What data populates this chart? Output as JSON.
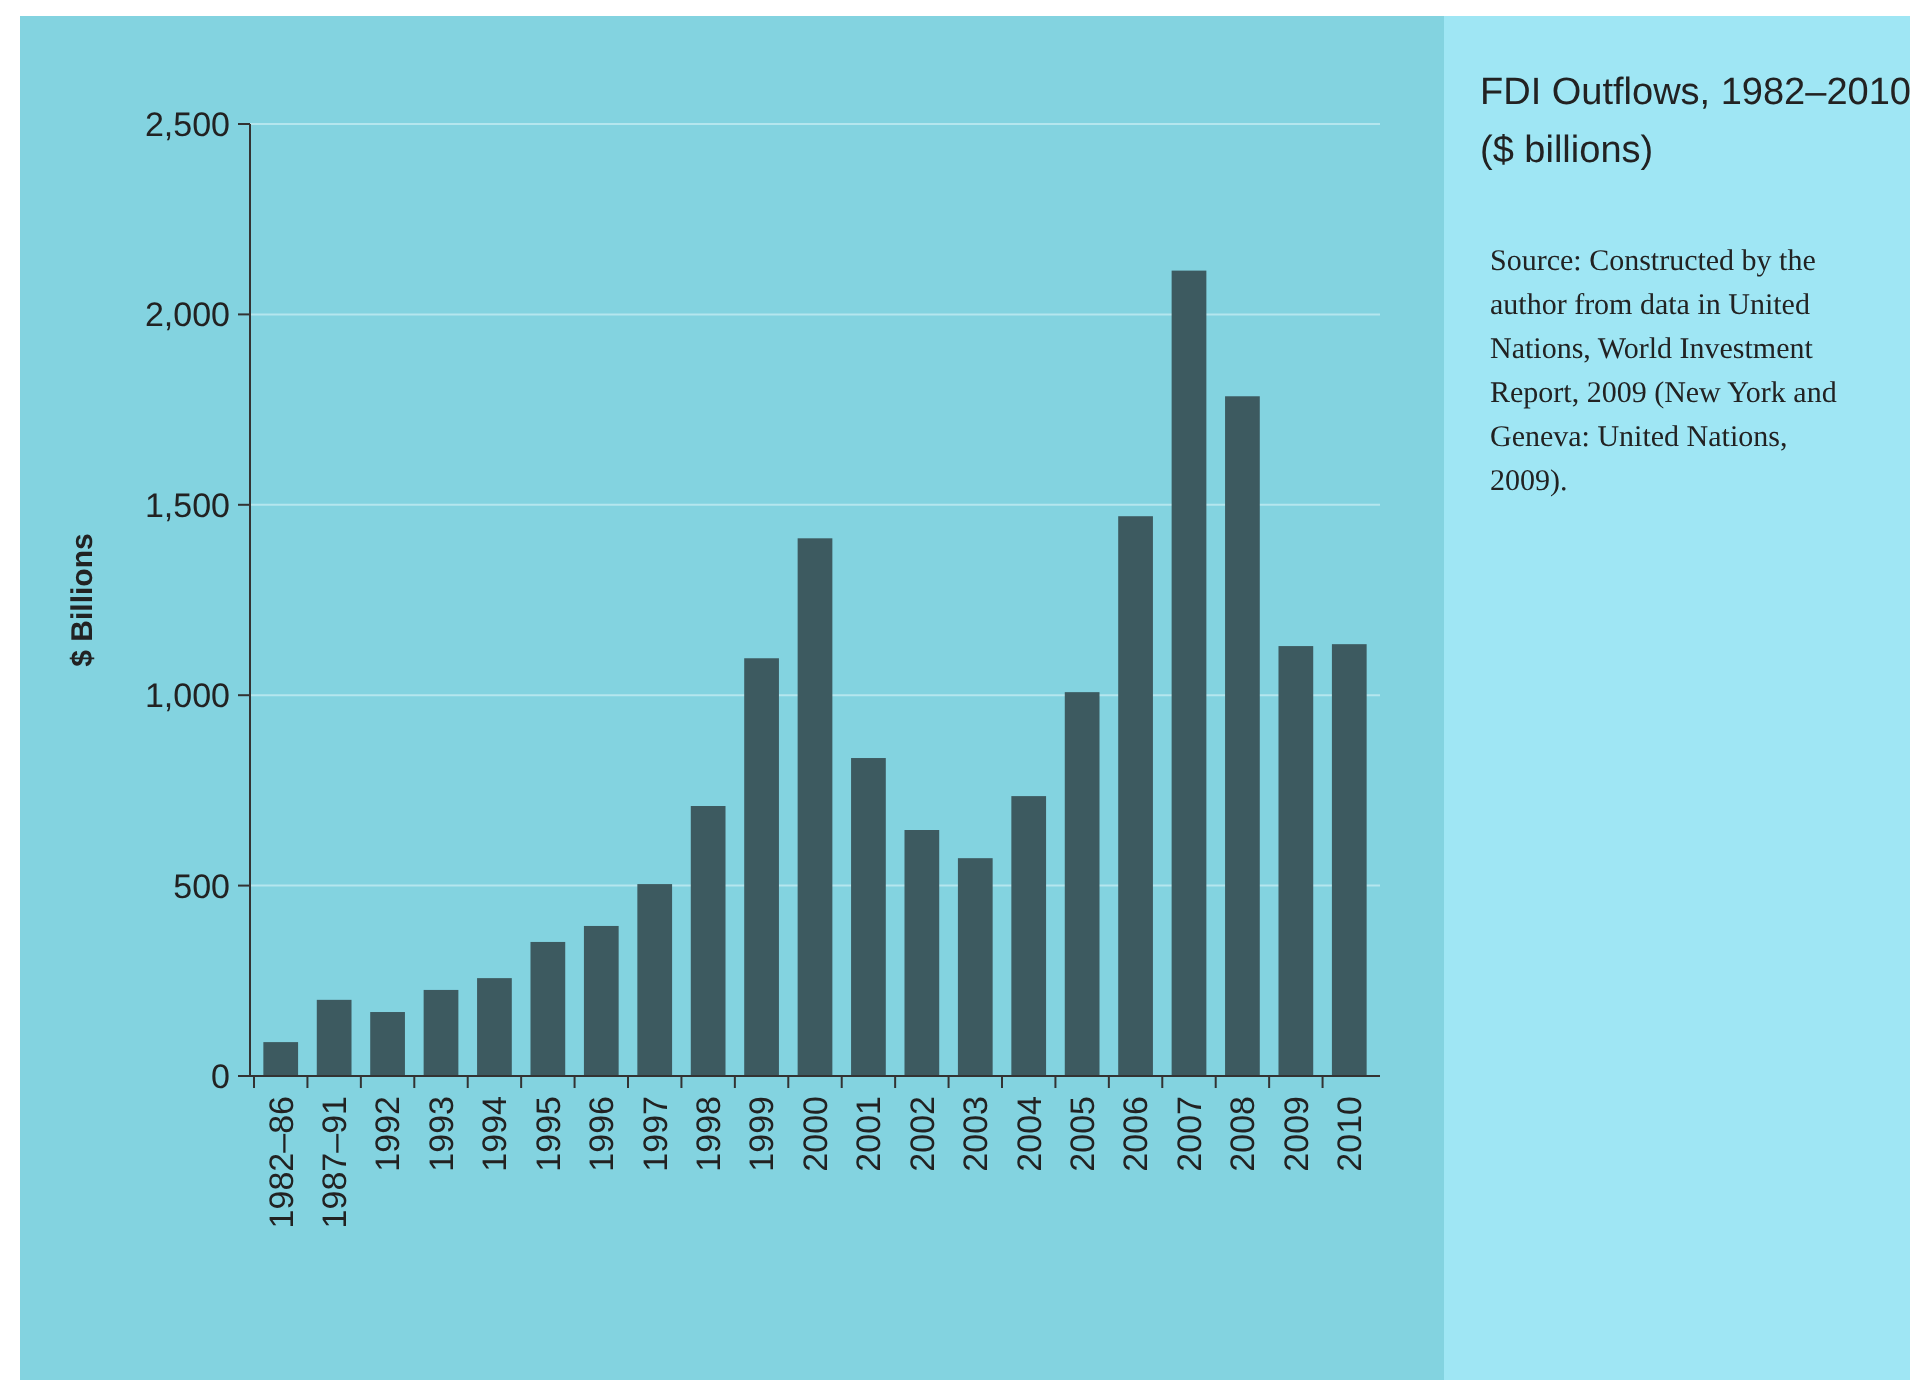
{
  "chart_data": {
    "type": "bar",
    "title": "FDI Outflows, 1982–2010 ($ billions)",
    "ylabel": "$ Billions",
    "categories": [
      "1982–86",
      "1987–91",
      "1992",
      "1993",
      "1994",
      "1995",
      "1996",
      "1997",
      "1998",
      "1999",
      "2000",
      "2001",
      "2002",
      "2003",
      "2004",
      "2005",
      "2006",
      "2007",
      "2008",
      "2009",
      "2010"
    ],
    "values": [
      89,
      200,
      168,
      226,
      257,
      352,
      394,
      504,
      709,
      1097,
      1412,
      835,
      646,
      572,
      735,
      1008,
      1470,
      2115,
      1785,
      1129,
      1134
    ],
    "color": "#3d5a60",
    "ylim": [
      0,
      2500
    ],
    "yticks": [
      0,
      {
        "value": 500,
        "label": "500"
      },
      {
        "value": 1000,
        "label": "1,000"
      },
      {
        "value": 1500,
        "label": "1,500"
      },
      {
        "value": 2000,
        "label": "2,000"
      },
      {
        "value": 2500,
        "label": "2,500"
      }
    ],
    "grid": "y",
    "annotations": [
      "Source: Constructed by the author from data in United Nations, World Investment Report, 2009 (New York and Geneva: United Nations, 2009)."
    ]
  }
}
